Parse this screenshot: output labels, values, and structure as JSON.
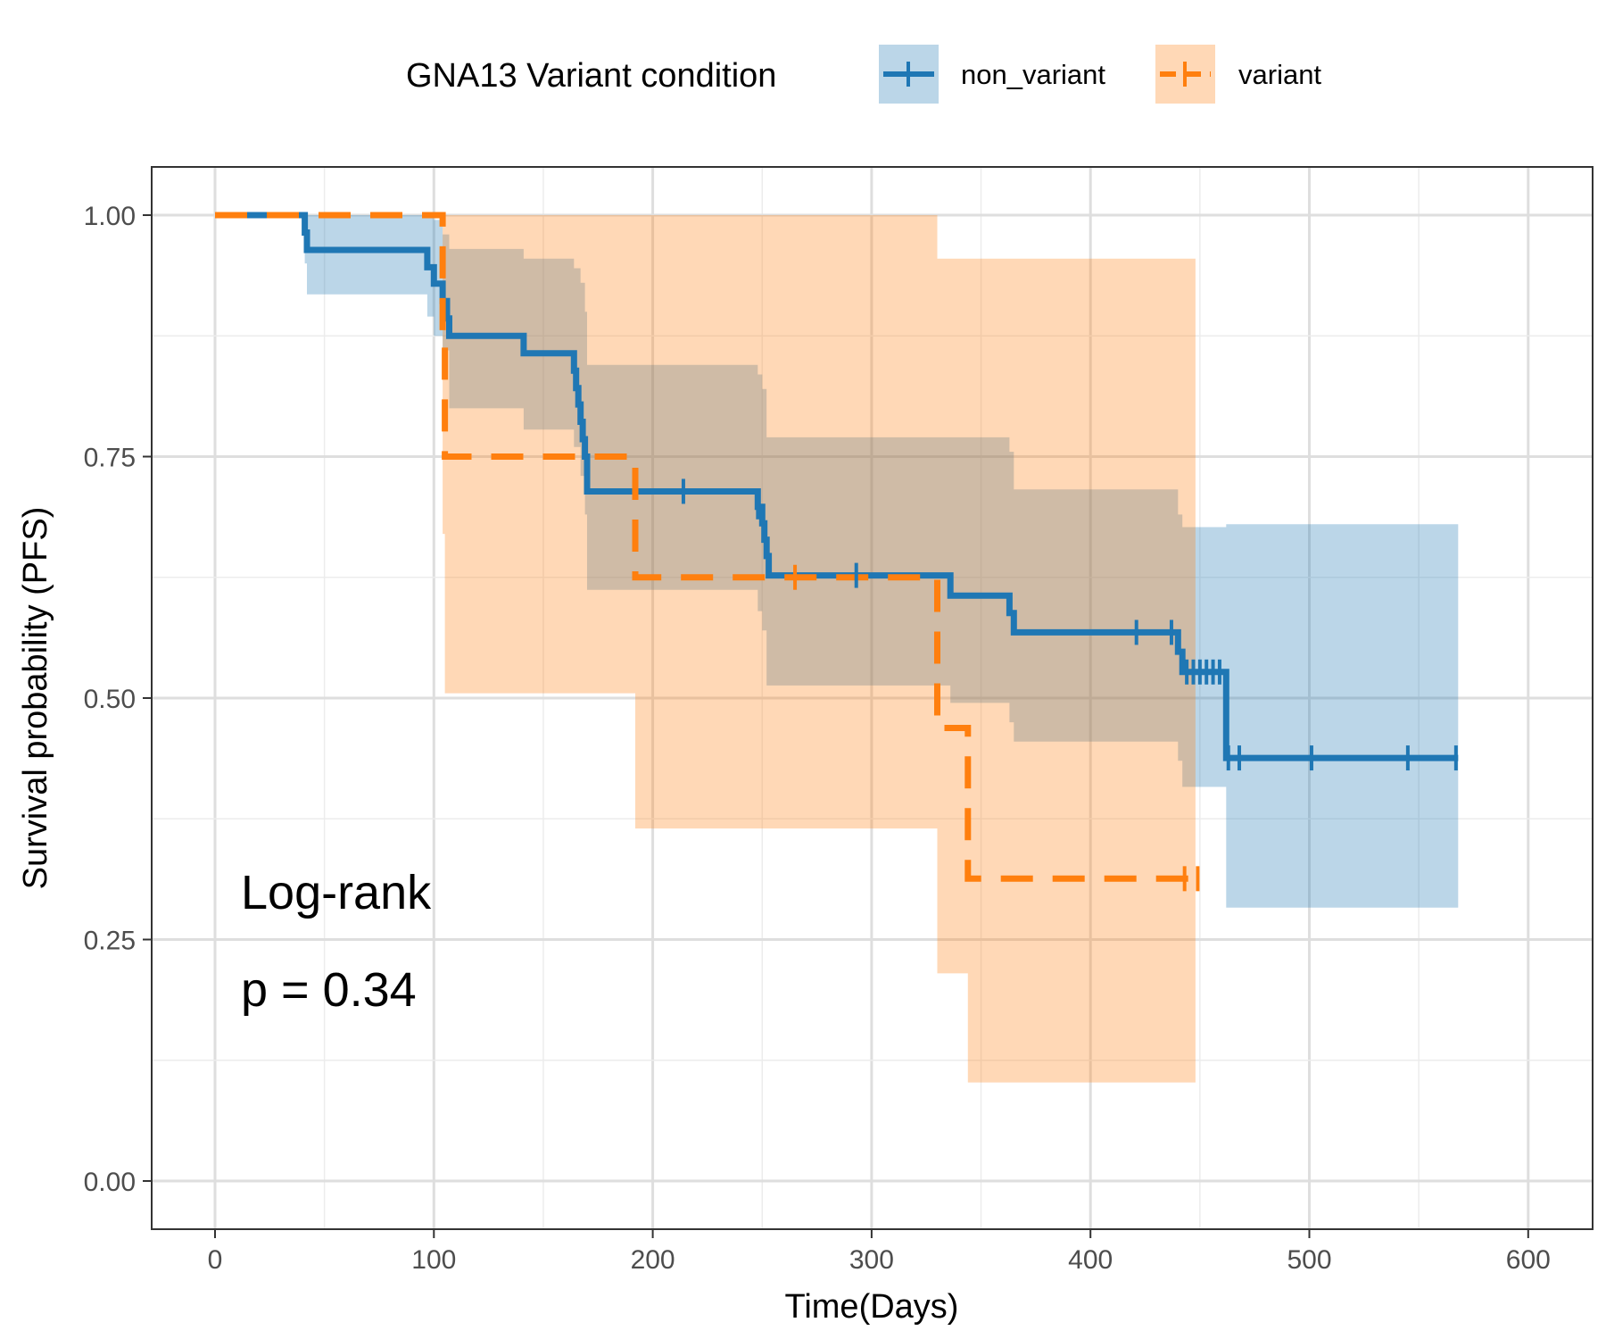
{
  "chart_data": {
    "type": "line",
    "subtype": "kaplan-meier",
    "xlabel": "Time(Days)",
    "ylabel": "Survival probability (PFS)",
    "xlim": [
      -30,
      630
    ],
    "ylim": [
      -0.05,
      1.05
    ],
    "xticks": [
      0,
      100,
      200,
      300,
      400,
      500,
      600
    ],
    "yticks": [
      0.0,
      0.25,
      0.5,
      0.75,
      1.0
    ],
    "xtick_labels": [
      "0",
      "100",
      "200",
      "300",
      "400",
      "500",
      "600"
    ],
    "ytick_labels": [
      "0.00",
      "0.25",
      "0.50",
      "0.75",
      "1.00"
    ],
    "grid": true,
    "legend": {
      "title": "GNA13 Variant condition",
      "position": "top"
    },
    "annotations": [
      "Log-rank",
      "p = 0.34"
    ],
    "series": [
      {
        "name": "non_variant",
        "color": "#1f77b4",
        "line_style": "solid",
        "steps": [
          [
            0,
            1.0
          ],
          [
            41,
            0.982
          ],
          [
            42,
            0.964
          ],
          [
            97,
            0.946
          ],
          [
            100,
            0.929
          ],
          [
            104,
            0.911
          ],
          [
            106,
            0.893
          ],
          [
            107,
            0.875
          ],
          [
            141,
            0.857
          ],
          [
            164,
            0.839
          ],
          [
            165,
            0.821
          ],
          [
            166,
            0.804
          ],
          [
            167,
            0.786
          ],
          [
            168,
            0.768
          ],
          [
            169,
            0.75
          ],
          [
            170,
            0.714
          ],
          [
            248,
            0.698
          ],
          [
            250,
            0.681
          ],
          [
            251,
            0.664
          ],
          [
            252,
            0.647
          ],
          [
            253,
            0.627
          ],
          [
            336,
            0.606
          ],
          [
            363,
            0.588
          ],
          [
            365,
            0.568
          ],
          [
            440,
            0.548
          ],
          [
            442,
            0.527
          ],
          [
            462,
            0.438
          ],
          [
            568,
            0.438
          ]
        ],
        "censored": [
          [
            214,
            0.714
          ],
          [
            248,
            0.698
          ],
          [
            293,
            0.627
          ],
          [
            421,
            0.568
          ],
          [
            437,
            0.568
          ],
          [
            444,
            0.527
          ],
          [
            447,
            0.527
          ],
          [
            450,
            0.527
          ],
          [
            453,
            0.527
          ],
          [
            456,
            0.527
          ],
          [
            459,
            0.527
          ],
          [
            463,
            0.438
          ],
          [
            468,
            0.438
          ],
          [
            501,
            0.438
          ],
          [
            545,
            0.438
          ],
          [
            567,
            0.438
          ]
        ],
        "ci_band": [
          [
            0,
            1.0,
            1.0
          ],
          [
            41,
            1.0,
            0.95
          ],
          [
            42,
            1.0,
            0.918
          ],
          [
            97,
            1.0,
            0.895
          ],
          [
            100,
            0.995,
            0.875
          ],
          [
            104,
            0.98,
            0.86
          ],
          [
            107,
            0.965,
            0.8
          ],
          [
            141,
            0.955,
            0.778
          ],
          [
            164,
            0.945,
            0.76
          ],
          [
            167,
            0.93,
            0.73
          ],
          [
            169,
            0.9,
            0.69
          ],
          [
            170,
            0.845,
            0.612
          ],
          [
            248,
            0.835,
            0.59
          ],
          [
            250,
            0.82,
            0.57
          ],
          [
            252,
            0.77,
            0.513
          ],
          [
            336,
            0.77,
            0.495
          ],
          [
            363,
            0.755,
            0.475
          ],
          [
            365,
            0.716,
            0.455
          ],
          [
            440,
            0.69,
            0.435
          ],
          [
            442,
            0.677,
            0.408
          ],
          [
            462,
            0.68,
            0.283
          ],
          [
            568,
            0.68,
            0.283
          ]
        ]
      },
      {
        "name": "variant",
        "color": "#ff7f0e",
        "line_style": "dashed",
        "steps": [
          [
            0,
            1.0
          ],
          [
            103,
            1.0
          ],
          [
            104,
            0.875
          ],
          [
            105,
            0.75
          ],
          [
            192,
            0.625
          ],
          [
            330,
            0.469
          ],
          [
            344,
            0.313
          ],
          [
            451,
            0.313
          ]
        ],
        "censored": [
          [
            265,
            0.625
          ],
          [
            443,
            0.313
          ],
          [
            449,
            0.313
          ]
        ],
        "ci_band": [
          [
            0,
            1.0,
            1.0
          ],
          [
            103,
            1.0,
            1.0
          ],
          [
            104,
            1.0,
            0.67
          ],
          [
            105,
            1.0,
            0.505
          ],
          [
            192,
            1.0,
            0.365
          ],
          [
            330,
            0.955,
            0.215
          ],
          [
            344,
            0.955,
            0.102
          ],
          [
            448,
            0.955,
            0.102
          ]
        ]
      }
    ]
  }
}
